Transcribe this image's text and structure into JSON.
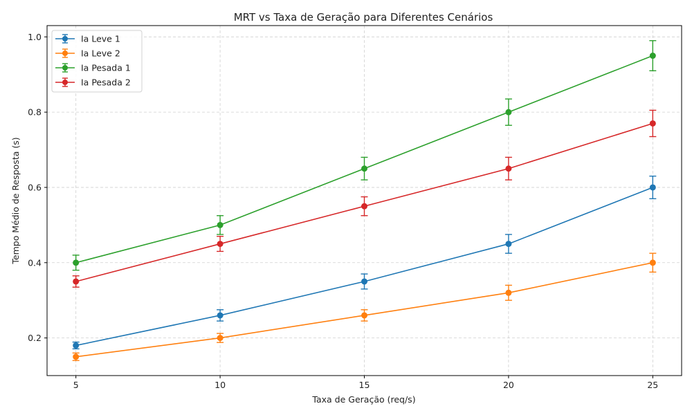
{
  "chart_data": {
    "type": "line",
    "title": "MRT vs Taxa de Geração para Diferentes Cenários",
    "xlabel": "Taxa de Geração (req/s)",
    "ylabel": "Tempo Médio de Resposta (s)",
    "x": [
      5,
      10,
      15,
      20,
      25
    ],
    "xlim": [
      4,
      26
    ],
    "ylim": [
      0.1,
      1.03
    ],
    "xticks": [
      "5",
      "10",
      "15",
      "20",
      "25"
    ],
    "xtick_values": [
      5,
      10,
      15,
      20,
      25
    ],
    "yticks": [
      "0.2",
      "0.4",
      "0.6",
      "0.8",
      "1.0"
    ],
    "ytick_values": [
      0.2,
      0.4,
      0.6,
      0.8,
      1.0
    ],
    "grid": true,
    "legend_position": "top-left",
    "series": [
      {
        "name": "Ia Leve 1",
        "color": "#1f77b4",
        "values": [
          0.18,
          0.26,
          0.35,
          0.45,
          0.6
        ],
        "errors": [
          0.009,
          0.015,
          0.02,
          0.025,
          0.03
        ]
      },
      {
        "name": "Ia Leve 2",
        "color": "#ff7f0e",
        "values": [
          0.15,
          0.2,
          0.26,
          0.32,
          0.4
        ],
        "errors": [
          0.01,
          0.012,
          0.015,
          0.02,
          0.025
        ]
      },
      {
        "name": "Ia Pesada 1",
        "color": "#2ca02c",
        "values": [
          0.4,
          0.5,
          0.65,
          0.8,
          0.95
        ],
        "errors": [
          0.02,
          0.025,
          0.03,
          0.035,
          0.04
        ]
      },
      {
        "name": "Ia Pesada 2",
        "color": "#d62728",
        "values": [
          0.35,
          0.45,
          0.55,
          0.65,
          0.77
        ],
        "errors": [
          0.015,
          0.02,
          0.025,
          0.03,
          0.035
        ]
      }
    ]
  }
}
